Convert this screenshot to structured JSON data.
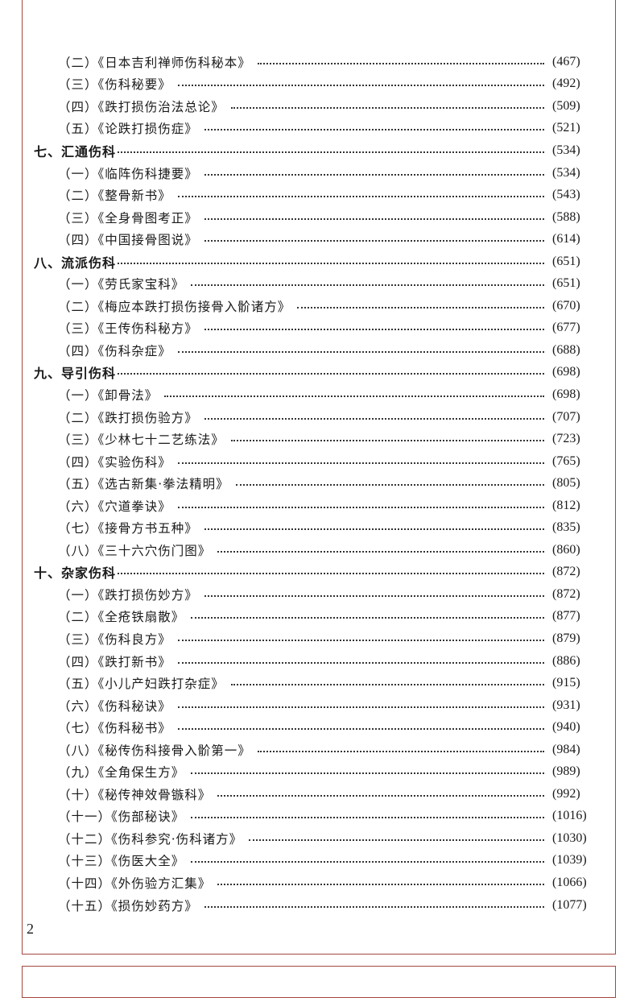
{
  "toc": [
    {
      "type": "sub",
      "title": "（二）《日本吉利禅师伤科秘本》",
      "page": "(467)"
    },
    {
      "type": "sub",
      "title": "（三）《伤科秘要》",
      "page": "(492)"
    },
    {
      "type": "sub",
      "title": "（四）《跌打损伤治法总论》",
      "page": "(509)"
    },
    {
      "type": "sub",
      "title": "（五）《论跌打损伤症》",
      "page": "(521)"
    },
    {
      "type": "sec",
      "title": "七、汇通伤科",
      "page": "(534)"
    },
    {
      "type": "sub",
      "title": "（一）《临阵伤科捷要》",
      "page": "(534)"
    },
    {
      "type": "sub",
      "title": "（二）《整骨新书》",
      "page": "(543)"
    },
    {
      "type": "sub",
      "title": "（三）《全身骨图考正》",
      "page": "(588)"
    },
    {
      "type": "sub",
      "title": "（四）《中国接骨图说》",
      "page": "(614)"
    },
    {
      "type": "sec",
      "title": "八、流派伤科",
      "page": "(651)"
    },
    {
      "type": "sub",
      "title": "（一）《劳氏家宝科》",
      "page": "(651)"
    },
    {
      "type": "sub",
      "title": "（二）《梅应本跌打损伤接骨入骱诸方》",
      "page": "(670)"
    },
    {
      "type": "sub",
      "title": "（三）《王传伤科秘方》",
      "page": "(677)"
    },
    {
      "type": "sub",
      "title": "（四）《伤科杂症》",
      "page": "(688)"
    },
    {
      "type": "sec",
      "title": "九、导引伤科",
      "page": "(698)"
    },
    {
      "type": "sub",
      "title": "（一）《卸骨法》",
      "page": "(698)"
    },
    {
      "type": "sub",
      "title": "（二）《跌打损伤验方》",
      "page": "(707)"
    },
    {
      "type": "sub",
      "title": "（三）《少林七十二艺练法》",
      "page": "(723)"
    },
    {
      "type": "sub",
      "title": "（四）《实验伤科》",
      "page": "(765)"
    },
    {
      "type": "sub",
      "title": "（五）《选古新集·拳法精明》",
      "page": "(805)"
    },
    {
      "type": "sub",
      "title": "（六）《穴道拳诀》",
      "page": "(812)"
    },
    {
      "type": "sub",
      "title": "（七）《接骨方书五种》",
      "page": "(835)"
    },
    {
      "type": "sub",
      "title": "（八）《三十六穴伤门图》",
      "page": "(860)"
    },
    {
      "type": "sec",
      "title": "十、杂家伤科",
      "page": "(872)"
    },
    {
      "type": "sub",
      "title": "（一）《跌打损伤妙方》",
      "page": "(872)"
    },
    {
      "type": "sub",
      "title": "（二）《全疮铁扇散》",
      "page": "(877)"
    },
    {
      "type": "sub",
      "title": "（三）《伤科良方》",
      "page": "(879)"
    },
    {
      "type": "sub",
      "title": "（四）《跌打新书》",
      "page": "(886)"
    },
    {
      "type": "sub",
      "title": "（五）《小儿产妇跌打杂症》",
      "page": "(915)"
    },
    {
      "type": "sub",
      "title": "（六）《伤科秘诀》",
      "page": "(931)"
    },
    {
      "type": "sub",
      "title": "（七）《伤科秘书》",
      "page": "(940)"
    },
    {
      "type": "sub",
      "title": "（八）《秘传伤科接骨入骱第一》",
      "page": "(984)"
    },
    {
      "type": "sub",
      "title": "（九）《全角保生方》",
      "page": "(989)"
    },
    {
      "type": "sub",
      "title": "（十）《秘传神效骨镞科》",
      "page": "(992)"
    },
    {
      "type": "sub",
      "title": "（十一）《伤部秘诀》",
      "page": "(1016)"
    },
    {
      "type": "sub",
      "title": "（十二）《伤科参究·伤科诸方》",
      "page": "(1030)"
    },
    {
      "type": "sub",
      "title": "（十三）《伤医大全》",
      "page": "(1039)"
    },
    {
      "type": "sub",
      "title": "（十四）《外伤验方汇集》",
      "page": "(1066)"
    },
    {
      "type": "sub",
      "title": "（十五）《损伤妙药方》",
      "page": "(1077)"
    }
  ],
  "folio": "2",
  "colors": {
    "frame": "#a5473f",
    "text": "#1a1a1a"
  }
}
